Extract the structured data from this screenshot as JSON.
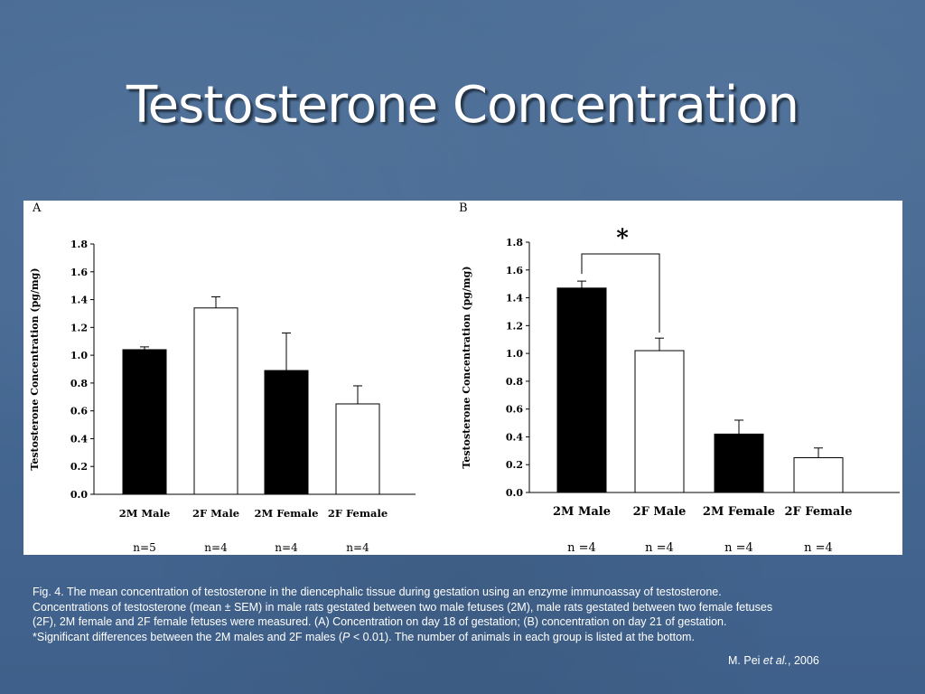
{
  "slide": {
    "title": "Testosterone Concentration",
    "caption": {
      "part1": "Fig. 4. The mean concentration of testosterone in the diencephalic tissue during gestation using an enzyme immunoassay of testosterone.",
      "part2": "Concentrations of testosterone (mean ± SEM) in male rats gestated between two male fetuses (2M), male rats gestated between two female fetuses",
      "part3": "(2F), 2M female and 2F female fetuses were measured. (A) Concentration on day 18 of gestation; (B) concentration on day 21 of gestation.",
      "part4_a": "*Significant differences between the 2M males and 2F males (",
      "part4_p": "P",
      "part4_b": " < 0.01). The number of animals in each group is listed at the bottom."
    },
    "citation": {
      "author": "M. Pei ",
      "etal": "et al.",
      "year": ", 2006"
    }
  },
  "colors": {
    "background": "#456892",
    "filled_bar": "#000000",
    "open_bar": "#ffffff"
  },
  "chart_data": [
    {
      "type": "bar",
      "panel": "A",
      "ylabel": "Testosterone Concentration (pg/mg)",
      "ylim": [
        0,
        1.8
      ],
      "yticks": [
        "0.0",
        "0.2",
        "0.4",
        "0.6",
        "0.8",
        "1.0",
        "1.2",
        "1.4",
        "1.6",
        "1.8"
      ],
      "categories": [
        "2M Male",
        "2F Male",
        "2M Female",
        "2F Female"
      ],
      "values": [
        1.04,
        1.34,
        0.89,
        0.65
      ],
      "errors": [
        0.02,
        0.08,
        0.27,
        0.13
      ],
      "fills": [
        "filled",
        "open",
        "filled",
        "open"
      ],
      "n_labels": [
        "n=5",
        "n=4",
        "n=4",
        "n=4"
      ]
    },
    {
      "type": "bar",
      "panel": "B",
      "ylabel": "Testosterone Concentration (pg/mg)",
      "ylim": [
        0,
        1.8
      ],
      "yticks": [
        "0.0",
        "0.2",
        "0.4",
        "0.6",
        "0.8",
        "1.0",
        "1.2",
        "1.4",
        "1.6",
        "1.8"
      ],
      "categories": [
        "2M Male",
        "2F Male",
        "2M Female",
        "2F Female"
      ],
      "values": [
        1.47,
        1.02,
        0.42,
        0.25
      ],
      "errors": [
        0.05,
        0.09,
        0.1,
        0.07
      ],
      "fills": [
        "filled",
        "open",
        "filled",
        "open"
      ],
      "n_labels": [
        "n =4",
        "n =4",
        "n =4",
        "n =4"
      ],
      "significance": {
        "from": 0,
        "to": 1,
        "marker": "*"
      }
    }
  ]
}
